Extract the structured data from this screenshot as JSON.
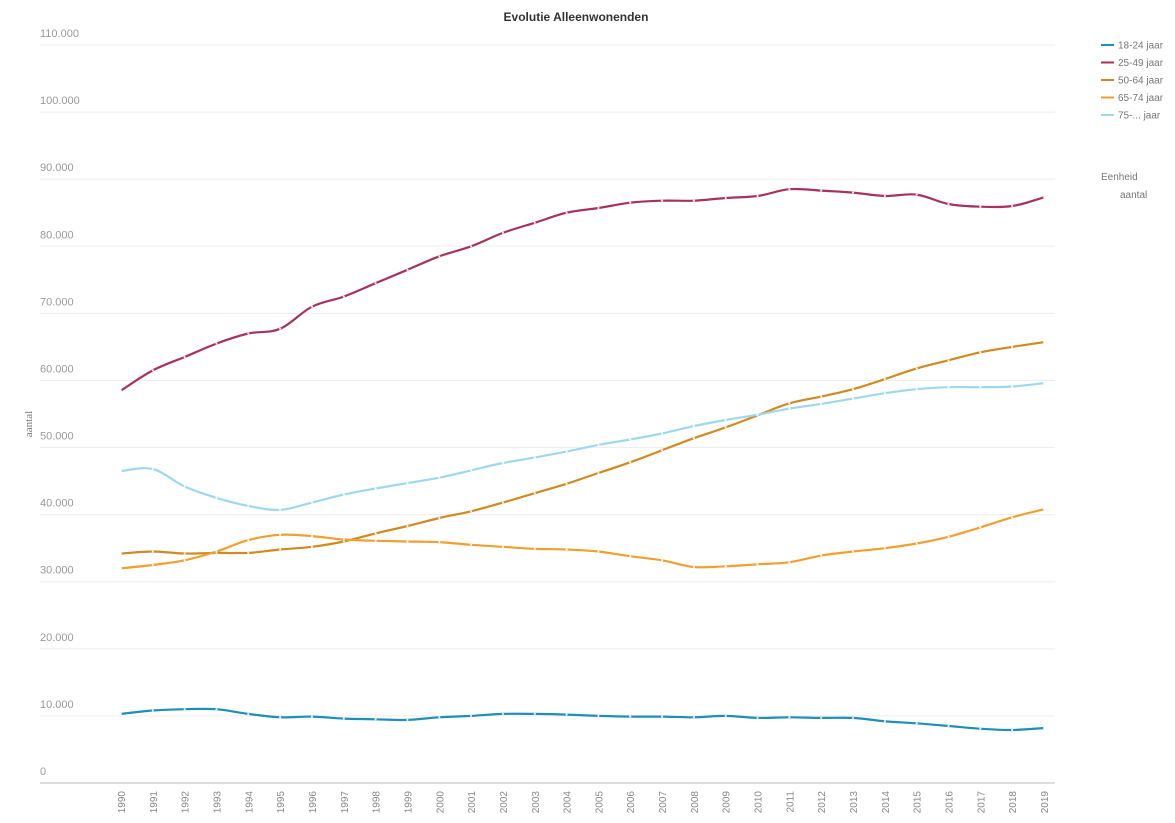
{
  "chart_data": {
    "type": "line",
    "title": "Evolutie Alleenwonenden",
    "xlabel": "",
    "ylabel": "aantal",
    "ylim": [
      0,
      110000
    ],
    "y_ticks": [
      "0",
      "10.000",
      "20.000",
      "30.000",
      "40.000",
      "50.000",
      "60.000",
      "70.000",
      "80.000",
      "90.000",
      "100.000",
      "110.000"
    ],
    "grid": true,
    "legend_position": "right",
    "legend_note_title": "Eenheid",
    "legend_note_value": "aantal",
    "x": [
      "1990",
      "1991",
      "1992",
      "1993",
      "1994",
      "1995",
      "1996",
      "1997",
      "1998",
      "1999",
      "2000",
      "2001",
      "2002",
      "2003",
      "2004",
      "2005",
      "2006",
      "2007",
      "2008",
      "2009",
      "2010",
      "2011",
      "2012",
      "2013",
      "2014",
      "2015",
      "2016",
      "2017",
      "2018",
      "2019"
    ],
    "series": [
      {
        "name": "18-24 jaar",
        "color": "#1f8fb8",
        "values": [
          10300,
          10800,
          11000,
          11000,
          10300,
          9800,
          9900,
          9600,
          9500,
          9400,
          9800,
          10000,
          10300,
          10300,
          10200,
          10000,
          9900,
          9900,
          9800,
          10000,
          9700,
          9800,
          9700,
          9700,
          9200,
          8900,
          8500,
          8100,
          7900,
          8200
        ]
      },
      {
        "name": "25-49 jaar",
        "color": "#a8325e",
        "values": [
          58500,
          61500,
          63500,
          65500,
          67000,
          67700,
          71000,
          72500,
          74500,
          76500,
          78500,
          80000,
          82000,
          83500,
          85000,
          85700,
          86500,
          86800,
          86800,
          87200,
          87500,
          88500,
          88300,
          88000,
          87500,
          87700,
          86300,
          85900,
          86000,
          87300
        ]
      },
      {
        "name": "50-64 jaar",
        "color": "#d08a20",
        "values": [
          34200,
          34500,
          34200,
          34300,
          34300,
          34800,
          35200,
          36000,
          37200,
          38300,
          39500,
          40500,
          41800,
          43200,
          44600,
          46200,
          47800,
          49600,
          51400,
          53000,
          54800,
          56600,
          57600,
          58700,
          60200,
          61800,
          63000,
          64200,
          65000,
          65700
        ]
      },
      {
        "name": "65-74 jaar",
        "color": "#f0a030",
        "values": [
          32000,
          32500,
          33200,
          34500,
          36200,
          37000,
          36800,
          36300,
          36100,
          36000,
          35900,
          35500,
          35200,
          34900,
          34800,
          34500,
          33800,
          33200,
          32200,
          32300,
          32600,
          32900,
          33900,
          34500,
          35000,
          35700,
          36700,
          38100,
          39600,
          40800
        ]
      },
      {
        "name": "75-... jaar",
        "color": "#9fd8ee",
        "values": [
          46500,
          46800,
          44200,
          42500,
          41300,
          40700,
          41800,
          43000,
          43900,
          44700,
          45500,
          46600,
          47700,
          48500,
          49400,
          50400,
          51200,
          52100,
          53200,
          54100,
          54900,
          55800,
          56500,
          57300,
          58100,
          58700,
          59000,
          59000,
          59100,
          59600
        ]
      }
    ]
  }
}
